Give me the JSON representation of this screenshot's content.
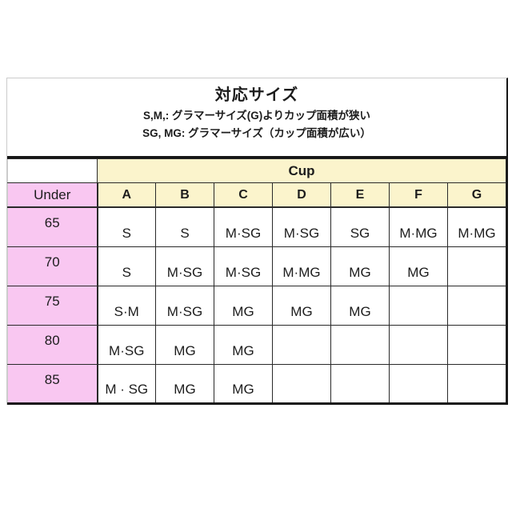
{
  "title_block": {
    "title": "対応サイズ",
    "note_sm": "S,M,: グラマーサイズ(G)よりカップ面積が狭い",
    "note_sgmg": "SG, MG: グラマーサイズ（カップ面積が広い）"
  },
  "table": {
    "cup_header": "Cup",
    "under_header": "Under",
    "cup_columns": [
      "A",
      "B",
      "C",
      "D",
      "E",
      "F",
      "G"
    ],
    "rows": [
      {
        "under": "65",
        "values": [
          "S",
          "S",
          "M·SG",
          "M·SG",
          "SG",
          "M·MG",
          "M·MG"
        ]
      },
      {
        "under": "70",
        "values": [
          "S",
          "M·SG",
          "M·SG",
          "M·MG",
          "MG",
          "MG",
          ""
        ]
      },
      {
        "under": "75",
        "values": [
          "S·M",
          "M·SG",
          "MG",
          "MG",
          "MG",
          "",
          ""
        ]
      },
      {
        "under": "80",
        "values": [
          "M·SG",
          "MG",
          "MG",
          "",
          "",
          "",
          ""
        ]
      },
      {
        "under": "85",
        "values": [
          "M · SG",
          "MG",
          "MG",
          "",
          "",
          "",
          ""
        ]
      }
    ]
  },
  "colors": {
    "under_pink": "#f9c7f1",
    "cup_yellow": "#fbf4cc",
    "border_dark": "#161616",
    "grid_line": "#2a2a2a",
    "text": "#1c1c1c",
    "background": "#ffffff"
  }
}
